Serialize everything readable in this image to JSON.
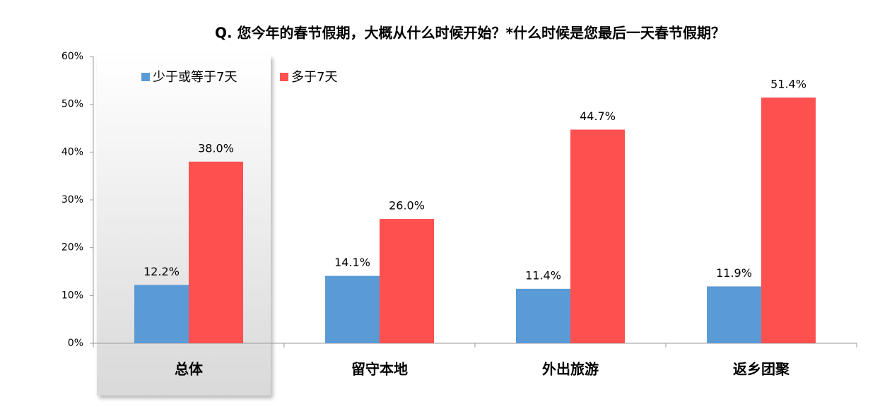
{
  "chart_data": {
    "type": "bar",
    "title": "Q. 您今年的春节假期，大概从什么时候开始？*什么时候是您最后一天春节假期？",
    "categories": [
      "总体",
      "留守本地",
      "外出旅游",
      "返乡团聚"
    ],
    "series": [
      {
        "name": "少于或等于7天",
        "color": "#5b9bd5",
        "values": [
          12.2,
          14.1,
          11.4,
          11.9
        ],
        "value_labels": [
          "12.2%",
          "14.1%",
          "11.4%",
          "11.9%"
        ]
      },
      {
        "name": "多于7天",
        "color": "#ff5050",
        "values": [
          38.0,
          26.0,
          44.7,
          51.4
        ],
        "value_labels": [
          "38.0%",
          "26.0%",
          "44.7%",
          "51.4%"
        ]
      }
    ],
    "ylim": [
      0,
      60
    ],
    "yticks": [
      {
        "value": 0,
        "label": "0%"
      },
      {
        "value": 10,
        "label": "10%"
      },
      {
        "value": 20,
        "label": "20%"
      },
      {
        "value": 30,
        "label": "30%"
      },
      {
        "value": 40,
        "label": "40%"
      },
      {
        "value": 50,
        "label": "50%"
      },
      {
        "value": 60,
        "label": "60%"
      }
    ],
    "legend": "top-left"
  }
}
